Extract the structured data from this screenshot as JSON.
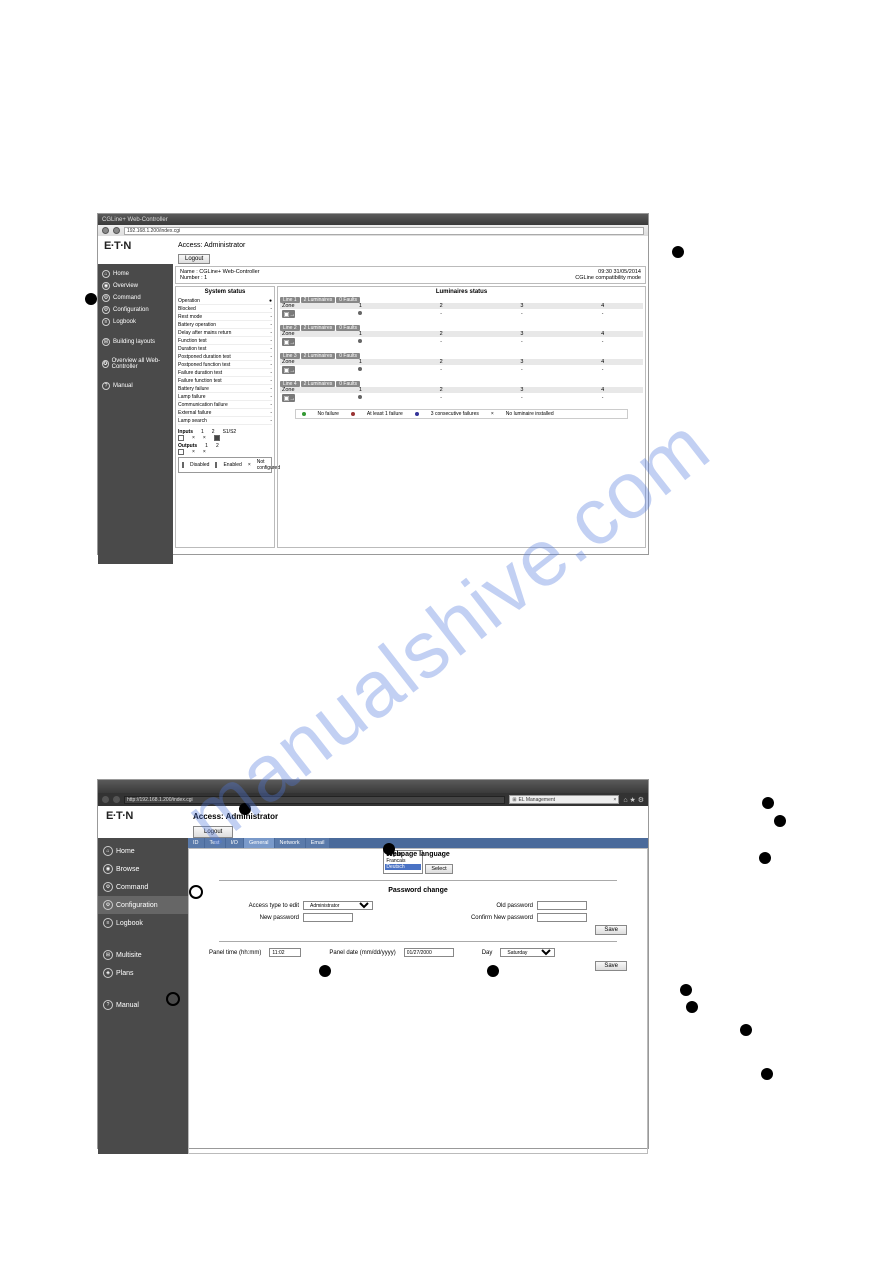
{
  "watermark": "manualshive.com",
  "shot1": {
    "tab_title": "CGLine+ Web-Controller",
    "url": "192.168.1.200/index.cgi",
    "access_label": "Access: Administrator",
    "logout": "Logout",
    "logo": "E·T·N",
    "name_label": "Name :",
    "name_value": "CGLine+ Web-Controller",
    "number_label": "Number :",
    "number_value": "1",
    "time": "09:30 31/05/2014",
    "mode": "CGLine compatibility mode",
    "sidebar": [
      {
        "icon": "⌂",
        "label": "Home"
      },
      {
        "icon": "◉",
        "label": "Overview"
      },
      {
        "icon": "⚙",
        "label": "Command"
      },
      {
        "icon": "⚙",
        "label": "Configuration"
      },
      {
        "icon": "≡",
        "label": "Logbook"
      },
      {
        "icon": "⊞",
        "label": "Building layouts"
      },
      {
        "icon": "✪",
        "label": "Overview all Web-Controller"
      },
      {
        "icon": "?",
        "label": "Manual"
      }
    ],
    "system_status_title": "System status",
    "system_rows": [
      "Operation",
      "Blocked",
      "Rest mode",
      "Battery operation",
      "Delay after mains return",
      "Function test",
      "Duration test",
      "Postponed duration test",
      "Postponed function test",
      "Failure duration test",
      "Failure function test",
      "Battery failure",
      "Lamp failure",
      "Communication failure",
      "External failure",
      "Lamp search"
    ],
    "inputs_label": "Inputs",
    "outputs_label": "Outputs",
    "io_cols": [
      "1",
      "2",
      "S1/S2"
    ],
    "legend_io": [
      "Disabled",
      "Enabled",
      "Not configured"
    ],
    "luminaires_title": "Luminaires status",
    "zone_header": [
      "Zone",
      "1",
      "2",
      "3",
      "4"
    ],
    "line_tabs": [
      {
        "line": "Line 1",
        "lum": "2 Luminaires",
        "fault": "0 Faults"
      },
      {
        "line": "Line 2",
        "lum": "2 Luminaires",
        "fault": "0 Faults"
      },
      {
        "line": "Line 3",
        "lum": "2 Luminaires",
        "fault": "0 Faults"
      },
      {
        "line": "Line 4",
        "lum": "2 Luminaires",
        "fault": "0 Faults"
      }
    ],
    "legend_lum": [
      "No failure",
      "At least 1 failure",
      "3 consecutive failures",
      "No luminaire installed"
    ]
  },
  "shot2": {
    "url": "http://192.168.1.200/index.cgi",
    "tab_title": "EL Management",
    "access_label": "Access: Administrator",
    "logout": "Logout",
    "logo": "E·T·N",
    "sidebar": [
      {
        "icon": "⌂",
        "label": "Home"
      },
      {
        "icon": "◉",
        "label": "Browse"
      },
      {
        "icon": "⚙",
        "label": "Command"
      },
      {
        "icon": "⚙",
        "label": "Configuration"
      },
      {
        "icon": "≡",
        "label": "Logbook"
      },
      {
        "icon": "⊞",
        "label": "Multisite"
      },
      {
        "icon": "◈",
        "label": "Plans"
      },
      {
        "icon": "?",
        "label": "Manual"
      }
    ],
    "tabs": [
      "ID",
      "Test",
      "I/O",
      "General",
      "Network",
      "Email"
    ],
    "active_tab": "General",
    "lang_title": "Webpage language",
    "lang_options": [
      "English",
      "Francais",
      "Deutsch"
    ],
    "lang_selected": "Deutsch",
    "select_btn": "Select",
    "pwd_title": "Password change",
    "access_type_label": "Access type to edit",
    "access_type_value": "Administrator",
    "old_pwd": "Old password",
    "new_pwd": "New password",
    "confirm_pwd": "Confirm New password",
    "save": "Save",
    "panel_time_label": "Panel time (hh:mm)",
    "panel_time_value": "11:02",
    "panel_date_label": "Panel date (mm/dd/yyyy)",
    "panel_date_value": "01/27/2000",
    "day_label": "Day",
    "day_value": "Saturday"
  }
}
